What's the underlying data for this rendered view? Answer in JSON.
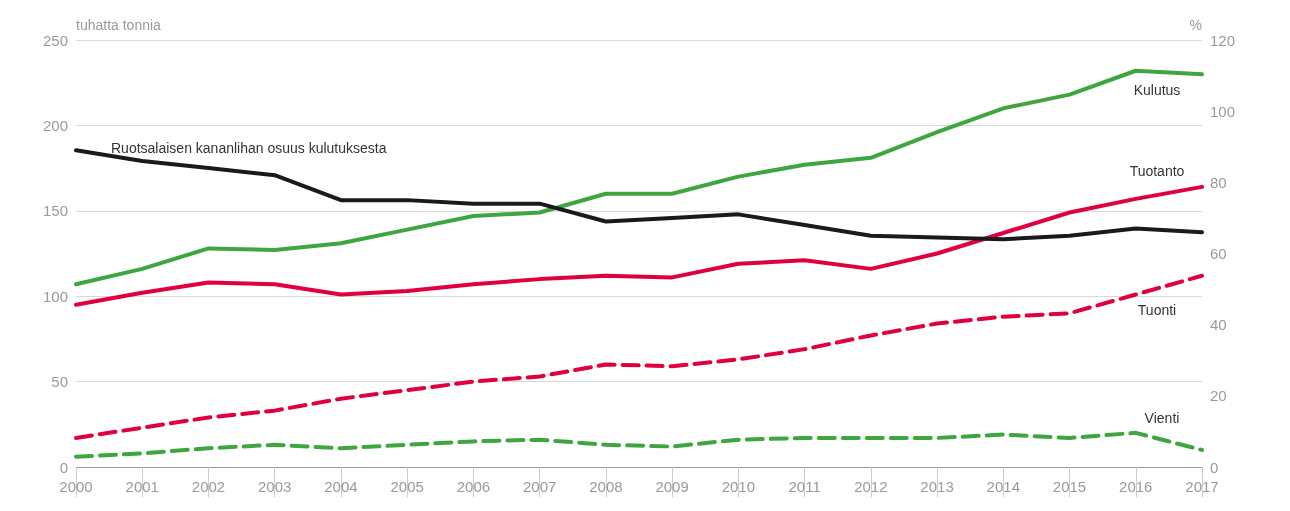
{
  "chart_data": {
    "type": "line",
    "ylabel": "tuhatta tonnia",
    "y2label": "%",
    "categories": [
      "2000",
      "2001",
      "2002",
      "2003",
      "2004",
      "2005",
      "2006",
      "2007",
      "2008",
      "2009",
      "2010",
      "2011",
      "2012",
      "2013",
      "2014",
      "2015",
      "2016",
      "2017"
    ],
    "series": [
      {
        "name": "Kulutus",
        "color": "#3fa63f",
        "line_style": "solid",
        "values": [
          107,
          116,
          128,
          127,
          131,
          139,
          147,
          149,
          160,
          160,
          170,
          177,
          181,
          196,
          210,
          218,
          232,
          230
        ]
      },
      {
        "name": "Tuotanto",
        "color": "#e0003f",
        "line_style": "solid",
        "values": [
          95,
          102,
          108,
          107,
          101,
          103,
          107,
          110,
          112,
          111,
          119,
          121,
          116,
          125,
          137,
          149,
          157,
          164
        ]
      },
      {
        "name": "Tuonti",
        "color": "#e0003f",
        "line_style": "dashed",
        "values": [
          17,
          23,
          29,
          33,
          40,
          45,
          50,
          53,
          60,
          59,
          63,
          69,
          77,
          84,
          88,
          90,
          101,
          112
        ]
      },
      {
        "name": "Vienti",
        "color": "#3fa63f",
        "line_style": "dashed",
        "values": [
          6,
          8,
          11,
          13,
          11,
          13,
          15,
          16,
          13,
          12,
          16,
          17,
          17,
          17,
          19,
          17,
          20,
          10
        ]
      },
      {
        "name": "Ruotsalaisen kananlihan osuus kulutuksesta",
        "color": "#1a1a1a",
        "line_style": "solid",
        "axis": "y2",
        "values": [
          89,
          86,
          84,
          82,
          75,
          75,
          74,
          74,
          69,
          70,
          71,
          68,
          65,
          64.5,
          64,
          65,
          67,
          66
        ]
      }
    ],
    "ylim": [
      0,
      250
    ],
    "yticks": [
      0,
      50,
      100,
      150,
      200,
      250
    ],
    "y2lim": [
      0,
      120
    ],
    "y2ticks": [
      0,
      20,
      40,
      60,
      80,
      100,
      120
    ],
    "grid": "y",
    "legend": false,
    "marker": "none"
  }
}
